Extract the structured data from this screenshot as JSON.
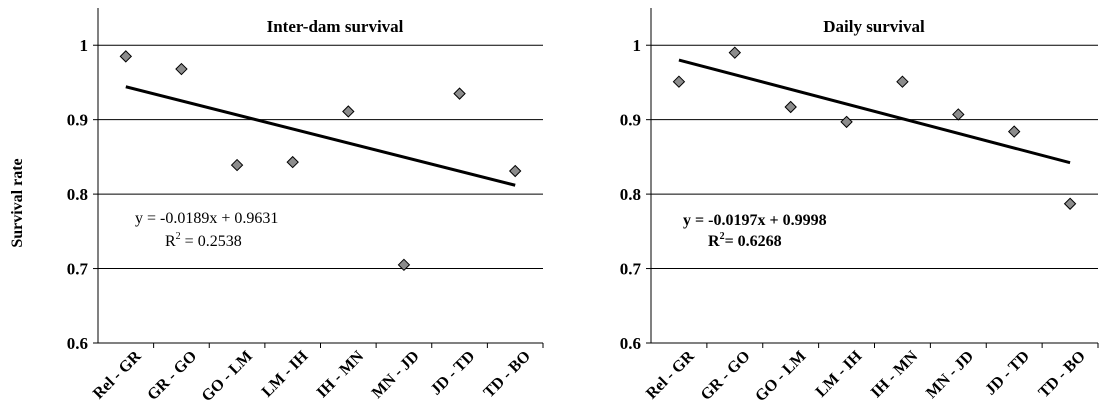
{
  "y_axis_label": "Survival rate",
  "chart_data": [
    {
      "type": "scatter",
      "title": "Inter-dam survival",
      "ylabel": "Survival rate",
      "categories": [
        "Rel - GR",
        "GR - GO",
        "GO - LM",
        "LM - IH",
        "IH - MN",
        "MN - JD",
        "JD - TD",
        "TD - BO"
      ],
      "values": [
        0.985,
        0.968,
        0.839,
        0.843,
        0.911,
        0.705,
        0.935,
        0.831
      ],
      "ylim": [
        0.6,
        1.05
      ],
      "yticks": [
        "0.6",
        "0.7",
        "0.8",
        "0.9",
        "1"
      ],
      "trendline": {
        "slope": -0.0189,
        "intercept": 0.9631
      },
      "equation": "y = -0.0189x + 0.9631",
      "r2_label": "R",
      "r2_sup": "2",
      "r2_value": " = 0.2538",
      "grid": true
    },
    {
      "type": "scatter",
      "title": "Daily survival",
      "ylabel": "Survival rate",
      "categories": [
        "Rel - GR",
        "GR - GO",
        "GO - LM",
        "LM - IH",
        "IH - MN",
        "MN - JD",
        "JD - TD",
        "TD - BO"
      ],
      "values": [
        0.951,
        0.99,
        0.917,
        0.897,
        0.951,
        0.907,
        0.884,
        0.787
      ],
      "ylim": [
        0.6,
        1.05
      ],
      "yticks": [
        "0.6",
        "0.7",
        "0.8",
        "0.9",
        "1"
      ],
      "trendline": {
        "slope": -0.0197,
        "intercept": 0.9998
      },
      "equation": "y = -0.0197x + 0.9998",
      "r2_label": "R",
      "r2_sup": "2",
      "r2_value": "= 0.6268",
      "grid": true
    }
  ]
}
